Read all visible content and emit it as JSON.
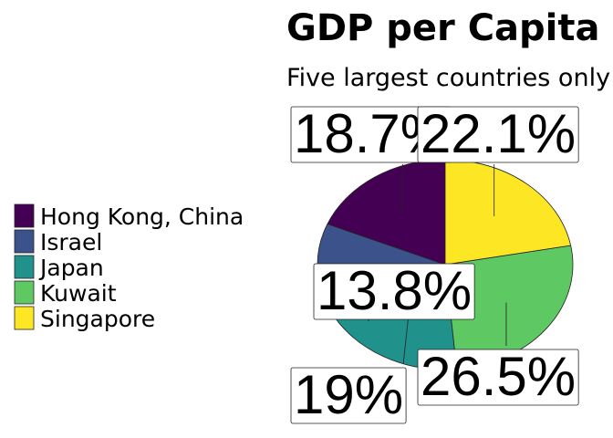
{
  "chart_data": {
    "type": "pie",
    "title": "GDP per Capita co",
    "subtitle": "Five largest countries only",
    "categories": [
      "Hong Kong, China",
      "Israel",
      "Japan",
      "Kuwait",
      "Singapore"
    ],
    "values": [
      18.7,
      13.8,
      19,
      26.5,
      22.1
    ],
    "value_labels": [
      "18.7%",
      "13.8%",
      "19%",
      "26.5%",
      "22.1%"
    ],
    "colors": [
      "#440154",
      "#3b528b",
      "#21918c",
      "#5ec962",
      "#fde725"
    ],
    "direction": "counterclockwise"
  }
}
